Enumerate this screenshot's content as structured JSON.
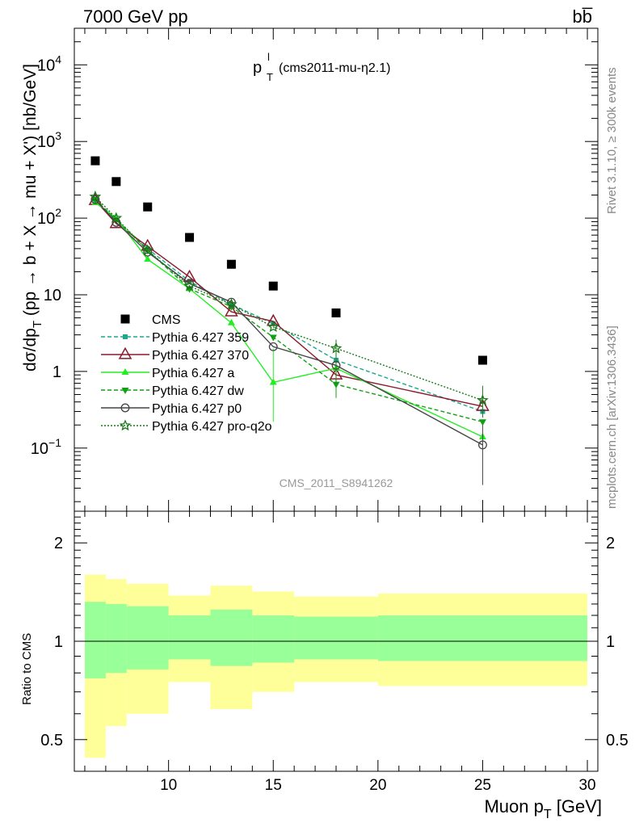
{
  "header": {
    "left": "7000 GeV pp",
    "right": "bb̅"
  },
  "plot_title": "(cms2011-mu-η2.1)",
  "plot_title_symbol": "p",
  "side_labels": {
    "rivet": "Rivet 3.1.10, ≥ 300k events",
    "mcplots": "mcplots.cern.ch [arXiv:1306.3436]"
  },
  "watermark": "CMS_2011_S8941262",
  "colors": {
    "cms": "#000000",
    "p359": "#1ba88d",
    "p370": "#8b1a2c",
    "pa": "#22ee22",
    "pdw": "#11a011",
    "pp0": "#444444",
    "pq2o": "#1a7a1a",
    "band_outer": "#ffff99",
    "band_inner": "#99ff99"
  },
  "chart_data": [
    {
      "type": "scatter",
      "title": "",
      "ylabel": "dσ/dp_T (pp → b + X → mu + X') [nb/GeV]",
      "xlabel": "",
      "yscale": "log",
      "xlim": [
        5.5,
        30.5
      ],
      "ylim": [
        0.015,
        30000
      ],
      "y_ticks": [
        {
          "v": 10000,
          "label": "10",
          "sup": "4"
        },
        {
          "v": 1000,
          "label": "10",
          "sup": "3"
        },
        {
          "v": 100,
          "label": "10",
          "sup": "2"
        },
        {
          "v": 10,
          "label": "10",
          "sup": ""
        },
        {
          "v": 1,
          "label": "1",
          "sup": ""
        },
        {
          "v": 0.1,
          "label": "10",
          "sup": "−1"
        }
      ],
      "legend_position": "middle-left",
      "series": [
        {
          "name": "CMS",
          "key": "cms",
          "x": [
            6.5,
            7.5,
            9,
            11,
            13,
            15,
            18,
            25
          ],
          "y": [
            560,
            300,
            140,
            56,
            25,
            13,
            5.8,
            1.4
          ]
        },
        {
          "name": "Pythia 6.427 359",
          "key": "p359",
          "x": [
            6.5,
            7.5,
            9,
            11,
            13,
            15,
            18,
            25
          ],
          "y": [
            175,
            95,
            40,
            15,
            7.5,
            4.2,
            1.4,
            0.3
          ]
        },
        {
          "name": "Pythia 6.427 370",
          "key": "p370",
          "x": [
            6.5,
            7.5,
            9,
            11,
            13,
            15,
            18,
            25
          ],
          "y": [
            170,
            85,
            43,
            17,
            6,
            4.5,
            0.9,
            0.35
          ]
        },
        {
          "name": "Pythia 6.427 a",
          "key": "pa",
          "x": [
            6.5,
            7.5,
            9,
            11,
            13,
            15,
            18,
            25
          ],
          "y": [
            160,
            100,
            29,
            12,
            4.3,
            0.72,
            1.1,
            0.14
          ]
        },
        {
          "name": "Pythia 6.427 dw",
          "key": "pdw",
          "x": [
            6.5,
            7.5,
            9,
            11,
            13,
            15,
            18,
            25
          ],
          "y": [
            175,
            95,
            38,
            12,
            7,
            2.8,
            0.68,
            0.22
          ]
        },
        {
          "name": "Pythia 6.427 p0",
          "key": "pp0",
          "x": [
            6.5,
            7.5,
            9,
            11,
            13,
            15,
            18,
            25
          ],
          "y": [
            175,
            88,
            36,
            14,
            8,
            2.1,
            1.2,
            0.11
          ]
        },
        {
          "name": "Pythia 6.427 pro-q2o",
          "key": "pq2o",
          "x": [
            6.5,
            7.5,
            9,
            11,
            13,
            15,
            18,
            25
          ],
          "y": [
            190,
            100,
            38,
            13,
            7.5,
            3.8,
            2.0,
            0.42
          ]
        }
      ]
    },
    {
      "type": "area",
      "title": "",
      "ylabel": "Ratio to CMS",
      "xlabel": "Muon p_T [GeV]",
      "yscale": "log",
      "xlim": [
        5.5,
        30.5
      ],
      "ylim": [
        0.4,
        2.5
      ],
      "x_ticks": [
        10,
        15,
        20,
        25,
        30
      ],
      "y_ticks": [
        {
          "v": 2,
          "label": "2"
        },
        {
          "v": 1,
          "label": "1"
        },
        {
          "v": 0.5,
          "label": "0.5"
        }
      ],
      "bins": [
        {
          "lo": 6,
          "hi": 7,
          "outer": [
            0.44,
            1.6
          ],
          "inner": [
            0.77,
            1.32
          ]
        },
        {
          "lo": 7,
          "hi": 8,
          "outer": [
            0.55,
            1.55
          ],
          "inner": [
            0.8,
            1.3
          ]
        },
        {
          "lo": 8,
          "hi": 10,
          "outer": [
            0.6,
            1.5
          ],
          "inner": [
            0.82,
            1.28
          ]
        },
        {
          "lo": 10,
          "hi": 12,
          "outer": [
            0.75,
            1.38
          ],
          "inner": [
            0.88,
            1.2
          ]
        },
        {
          "lo": 12,
          "hi": 14,
          "outer": [
            0.62,
            1.48
          ],
          "inner": [
            0.84,
            1.25
          ]
        },
        {
          "lo": 14,
          "hi": 16,
          "outer": [
            0.7,
            1.42
          ],
          "inner": [
            0.86,
            1.2
          ]
        },
        {
          "lo": 16,
          "hi": 20,
          "outer": [
            0.75,
            1.37
          ],
          "inner": [
            0.88,
            1.19
          ]
        },
        {
          "lo": 20,
          "hi": 30,
          "outer": [
            0.73,
            1.4
          ],
          "inner": [
            0.87,
            1.2
          ]
        }
      ]
    }
  ],
  "axis_text": {
    "main_ylabel_prefix": "dσ/dp",
    "main_ylabel_sub": "T",
    "main_ylabel_rest": " (pp → b + X → mu + X') [nb/GeV]",
    "ratio_ylabel": "Ratio to CMS",
    "xlabel_prefix": "Muon p",
    "xlabel_sub": "T",
    "xlabel_rest": " [GeV]"
  }
}
